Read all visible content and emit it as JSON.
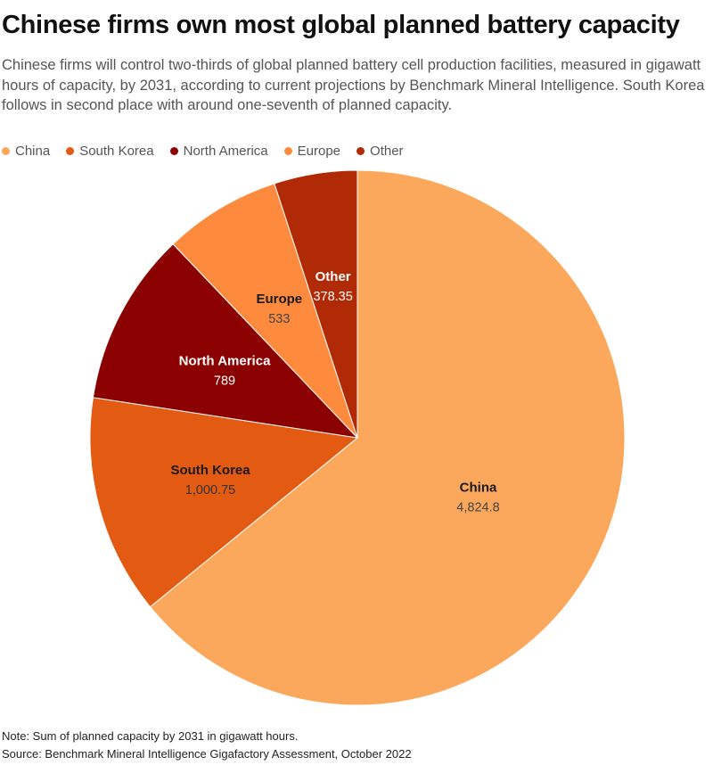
{
  "chart_data": {
    "type": "pie",
    "title": "Chinese firms own most global planned battery capacity",
    "subtitle": "Chinese firms will control two-thirds of global planned battery cell production facilities, measured in gigawatt hours of capacity, by 2031, according to current projections by Benchmark Mineral Intelligence. South Korea follows in second place with around one-seventh of planned capacity.",
    "legend_placement": "top-left",
    "series": [
      {
        "name": "China",
        "value": 4824.8,
        "value_label": "4,824.8",
        "color": "#fca85c",
        "label_color": "#1a1a1a",
        "value_color": "#444444"
      },
      {
        "name": "South Korea",
        "value": 1000.75,
        "value_label": "1,000.75",
        "color": "#e35a12",
        "label_color": "#1a1a1a",
        "value_color": "#333333"
      },
      {
        "name": "North America",
        "value": 789,
        "value_label": "789",
        "color": "#8b0000",
        "label_color": "#ffffff",
        "value_color": "#ffffff"
      },
      {
        "name": "Europe",
        "value": 533,
        "value_label": "533",
        "color": "#fd8a3d",
        "label_color": "#1a1a1a",
        "value_color": "#444444"
      },
      {
        "name": "Other",
        "value": 378.35,
        "value_label": "378.35",
        "color": "#b02a05",
        "label_color": "#ffffff",
        "value_color": "#ffffff"
      }
    ],
    "note": "Note: Sum of planned capacity by 2031 in gigawatt hours.",
    "source": "Source: Benchmark Mineral Intelligence Gigafactory Assessment, October 2022"
  }
}
